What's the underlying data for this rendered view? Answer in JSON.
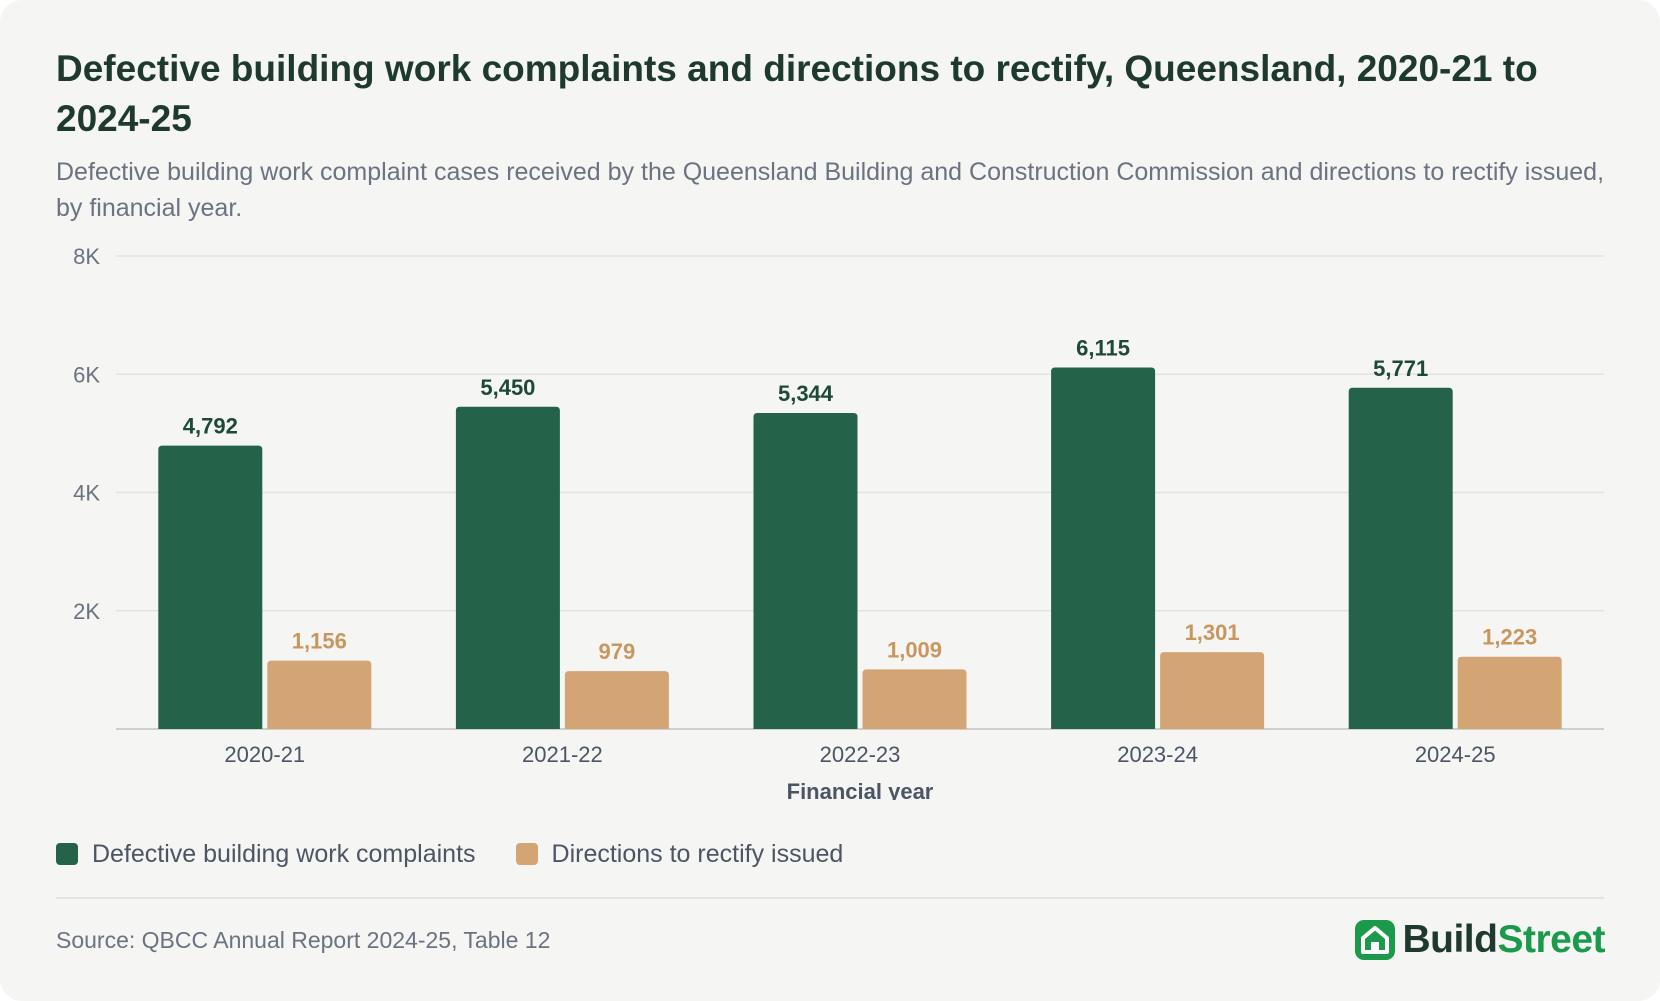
{
  "header": {
    "title": "Defective building work complaints and directions to rectify, Queensland, 2020-21 to 2024-25",
    "subtitle": "Defective building work complaint cases received by the Queensland Building and Construction Commission and directions to rectify issued, by financial year."
  },
  "chart_data": {
    "type": "bar",
    "title": "Defective building work complaints and directions to rectify, Queensland, 2020-21 to 2024-25",
    "xlabel": "Financial year",
    "ylabel": "",
    "ylim": [
      0,
      8000
    ],
    "yticks": [
      {
        "value": 2000,
        "label": "2K"
      },
      {
        "value": 4000,
        "label": "4K"
      },
      {
        "value": 6000,
        "label": "6K"
      },
      {
        "value": 8000,
        "label": "8K"
      }
    ],
    "grid": true,
    "legend": "bottom-left",
    "categories": [
      "2020-21",
      "2021-22",
      "2022-23",
      "2023-24",
      "2024-25"
    ],
    "series": [
      {
        "name": "Defective building work complaints",
        "color": "#25624a",
        "values": [
          4792,
          5450,
          5344,
          6115,
          5771
        ],
        "labels": [
          "4,792",
          "5,450",
          "5,344",
          "6,115",
          "5,771"
        ]
      },
      {
        "name": "Directions to rectify issued",
        "color": "#d4a574",
        "values": [
          1156,
          979,
          1009,
          1301,
          1223
        ],
        "labels": [
          "1,156",
          "979",
          "1,009",
          "1,301",
          "1,223"
        ]
      }
    ]
  },
  "footer": {
    "source": "Source: QBCC Annual Report 2024-25, Table 12",
    "brand_part1": "Build",
    "brand_part2": "Street",
    "brand_icon": "house-icon"
  },
  "colors": {
    "background": "#f5f5f4",
    "title": "#1d3a2c",
    "brand_green": "#1a9a4a"
  }
}
